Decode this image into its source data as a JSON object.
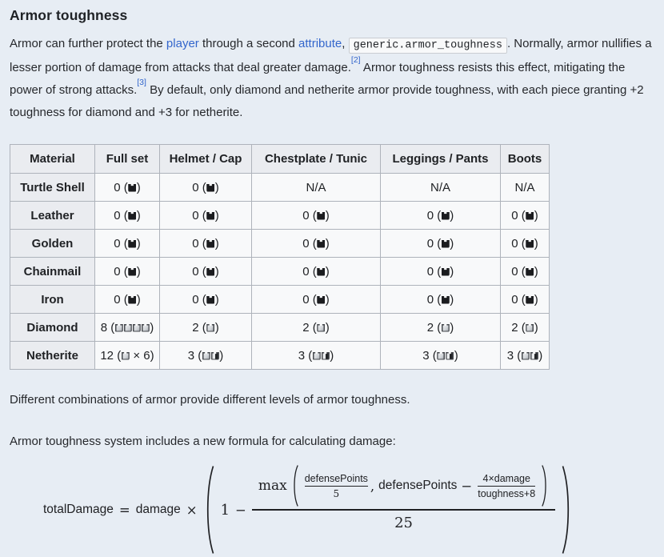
{
  "heading": "Armor toughness",
  "intro": {
    "t1": "Armor can further protect the ",
    "link_player": "player",
    "t2": " through a second ",
    "link_attribute": "attribute",
    "t3": ", ",
    "code": "generic.armor_toughness",
    "t4": ". Normally, armor nullifies a lesser portion of damage from attacks that deal greater damage.",
    "ref1": "[2]",
    "t5": " Armor toughness resists this effect, mitigating the power of strong attacks.",
    "ref2": "[3]",
    "t6": " By default, only diamond and netherite armor provide toughness, with each piece granting +2 toughness for diamond and +3 for netherite."
  },
  "table": {
    "headers": [
      "Material",
      "Full set",
      "Helmet / Cap",
      "Chestplate / Tunic",
      "Leggings / Pants",
      "Boots"
    ],
    "icon_legend": {
      "dark": "armor-toughness-zero-icon",
      "light": "armor-toughness-full-icon",
      "half": "armor-toughness-half-icon"
    },
    "rows": [
      {
        "material": "Turtle Shell",
        "cells": [
          {
            "pre": "0 (",
            "icons": [
              "dark"
            ],
            "post": ")"
          },
          {
            "pre": "0 (",
            "icons": [
              "dark"
            ],
            "post": ")"
          },
          {
            "pre": "N/A"
          },
          {
            "pre": "N/A"
          },
          {
            "pre": "N/A"
          }
        ]
      },
      {
        "material": "Leather",
        "cells": [
          {
            "pre": "0 (",
            "icons": [
              "dark"
            ],
            "post": ")"
          },
          {
            "pre": "0 (",
            "icons": [
              "dark"
            ],
            "post": ")"
          },
          {
            "pre": "0 (",
            "icons": [
              "dark"
            ],
            "post": ")"
          },
          {
            "pre": "0 (",
            "icons": [
              "dark"
            ],
            "post": ")"
          },
          {
            "pre": "0 (",
            "icons": [
              "dark"
            ],
            "post": ")"
          }
        ]
      },
      {
        "material": "Golden",
        "cells": [
          {
            "pre": "0 (",
            "icons": [
              "dark"
            ],
            "post": ")"
          },
          {
            "pre": "0 (",
            "icons": [
              "dark"
            ],
            "post": ")"
          },
          {
            "pre": "0 (",
            "icons": [
              "dark"
            ],
            "post": ")"
          },
          {
            "pre": "0 (",
            "icons": [
              "dark"
            ],
            "post": ")"
          },
          {
            "pre": "0 (",
            "icons": [
              "dark"
            ],
            "post": ")"
          }
        ]
      },
      {
        "material": "Chainmail",
        "cells": [
          {
            "pre": "0 (",
            "icons": [
              "dark"
            ],
            "post": ")"
          },
          {
            "pre": "0 (",
            "icons": [
              "dark"
            ],
            "post": ")"
          },
          {
            "pre": "0 (",
            "icons": [
              "dark"
            ],
            "post": ")"
          },
          {
            "pre": "0 (",
            "icons": [
              "dark"
            ],
            "post": ")"
          },
          {
            "pre": "0 (",
            "icons": [
              "dark"
            ],
            "post": ")"
          }
        ]
      },
      {
        "material": "Iron",
        "cells": [
          {
            "pre": "0 (",
            "icons": [
              "dark"
            ],
            "post": ")"
          },
          {
            "pre": "0 (",
            "icons": [
              "dark"
            ],
            "post": ")"
          },
          {
            "pre": "0 (",
            "icons": [
              "dark"
            ],
            "post": ")"
          },
          {
            "pre": "0 (",
            "icons": [
              "dark"
            ],
            "post": ")"
          },
          {
            "pre": "0 (",
            "icons": [
              "dark"
            ],
            "post": ")"
          }
        ]
      },
      {
        "material": "Diamond",
        "cells": [
          {
            "pre": "8 (",
            "icons": [
              "light",
              "light",
              "light",
              "light"
            ],
            "post": ")"
          },
          {
            "pre": "2 (",
            "icons": [
              "light"
            ],
            "post": ")"
          },
          {
            "pre": "2 (",
            "icons": [
              "light"
            ],
            "post": ")"
          },
          {
            "pre": "2 (",
            "icons": [
              "light"
            ],
            "post": ")"
          },
          {
            "pre": "2 (",
            "icons": [
              "light"
            ],
            "post": ")"
          }
        ]
      },
      {
        "material": "Netherite",
        "cells": [
          {
            "pre": "12 (",
            "icons": [
              "light"
            ],
            "post": " × 6)"
          },
          {
            "pre": "3 (",
            "icons": [
              "light",
              "half"
            ],
            "post": ")"
          },
          {
            "pre": "3 (",
            "icons": [
              "light",
              "half"
            ],
            "post": ")"
          },
          {
            "pre": "3 (",
            "icons": [
              "light",
              "half"
            ],
            "post": ")"
          },
          {
            "pre": "3 (",
            "icons": [
              "light",
              "half"
            ],
            "post": ")"
          }
        ]
      }
    ]
  },
  "para2": "Different combinations of armor provide different levels of armor toughness.",
  "para3": "Armor toughness system includes a new formula for calculating damage:",
  "formula": {
    "total_damage": "totalDamage",
    "equals": "=",
    "damage": "damage",
    "times": "×",
    "one": "1",
    "minus": "−",
    "max": "max",
    "frac1_num": "defensePoints",
    "frac1_den": "5",
    "comma": ",",
    "defense_points": "defensePoints",
    "minus2": "−",
    "frac2_num": "4×damage",
    "frac2_den": "toughness+8",
    "main_den": "25"
  }
}
